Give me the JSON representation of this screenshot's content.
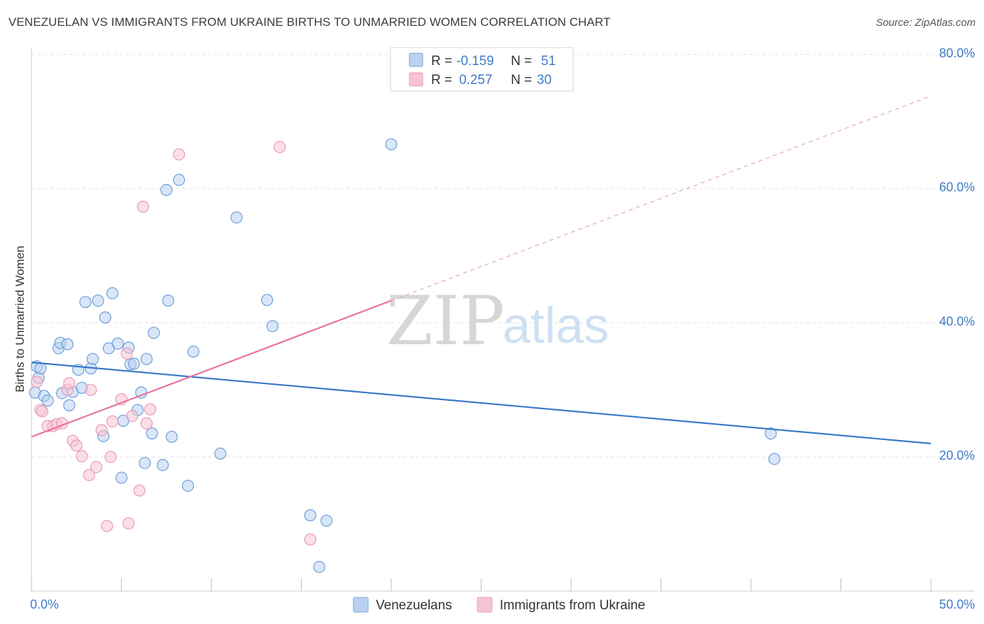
{
  "header": {
    "title": "VENEZUELAN VS IMMIGRANTS FROM UKRAINE BIRTHS TO UNMARRIED WOMEN CORRELATION CHART",
    "source": "Source: ZipAtlas.com"
  },
  "watermark": {
    "zip": "ZIP",
    "atlas": "atlas"
  },
  "legend": {
    "rows": [
      {
        "r_label": "R =",
        "r_value": "-0.159",
        "n_label": "N =",
        "n_value": "51"
      },
      {
        "r_label": "R =",
        "r_value": "0.257",
        "n_label": "N =",
        "n_value": "30"
      }
    ]
  },
  "chart_data": {
    "type": "scatter",
    "title": "VENEZUELAN VS IMMIGRANTS FROM UKRAINE BIRTHS TO UNMARRIED WOMEN CORRELATION CHART",
    "xlabel": "",
    "ylabel": "Births to Unmarried Women",
    "xlim": [
      0,
      50
    ],
    "ylim": [
      0,
      80
    ],
    "x_tick_labels": [
      "0.0%",
      "50.0%"
    ],
    "y_ticks": [
      20,
      40,
      60,
      80
    ],
    "y_tick_labels": [
      "20.0%",
      "40.0%",
      "60.0%",
      "80.0%"
    ],
    "grid": true,
    "legend_position": "top-center",
    "colors": {
      "venezuelans": "#3b78c9",
      "ukraine": "#e8739c",
      "venezuelans_fill": "#b8d2f0",
      "ukraine_fill": "#f6c4d4"
    },
    "series": [
      {
        "name": "Venezuelans",
        "trend": {
          "x": [
            0,
            50
          ],
          "y": [
            34.1,
            22.0
          ],
          "dashed_extension": false
        },
        "points": [
          [
            0.3,
            33.5
          ],
          [
            0.4,
            31.8
          ],
          [
            0.2,
            29.6
          ],
          [
            0.5,
            33.2
          ],
          [
            0.7,
            29.1
          ],
          [
            0.9,
            28.4
          ],
          [
            1.5,
            36.2
          ],
          [
            1.6,
            37.0
          ],
          [
            1.7,
            29.5
          ],
          [
            2.0,
            36.8
          ],
          [
            2.1,
            27.7
          ],
          [
            2.3,
            29.7
          ],
          [
            2.6,
            33.0
          ],
          [
            2.8,
            30.3
          ],
          [
            3.0,
            43.1
          ],
          [
            3.3,
            33.2
          ],
          [
            3.4,
            34.6
          ],
          [
            3.7,
            43.3
          ],
          [
            4.0,
            23.1
          ],
          [
            4.1,
            40.8
          ],
          [
            4.3,
            36.2
          ],
          [
            4.5,
            44.4
          ],
          [
            4.8,
            36.9
          ],
          [
            5.0,
            16.9
          ],
          [
            5.1,
            25.4
          ],
          [
            5.4,
            36.3
          ],
          [
            5.5,
            33.8
          ],
          [
            5.7,
            33.9
          ],
          [
            5.9,
            27.0
          ],
          [
            6.1,
            29.6
          ],
          [
            6.4,
            34.6
          ],
          [
            6.3,
            19.1
          ],
          [
            6.7,
            23.5
          ],
          [
            6.8,
            38.5
          ],
          [
            7.3,
            18.8
          ],
          [
            7.6,
            43.3
          ],
          [
            7.8,
            23.0
          ],
          [
            7.5,
            59.8
          ],
          [
            8.2,
            61.3
          ],
          [
            8.7,
            15.7
          ],
          [
            9.0,
            35.7
          ],
          [
            10.5,
            20.5
          ],
          [
            11.4,
            55.7
          ],
          [
            13.1,
            43.4
          ],
          [
            13.4,
            39.5
          ],
          [
            15.5,
            11.3
          ],
          [
            16.0,
            3.6
          ],
          [
            16.4,
            10.5
          ],
          [
            20.0,
            66.6
          ],
          [
            41.1,
            23.5
          ],
          [
            41.3,
            19.7
          ]
        ]
      },
      {
        "name": "Immigrants from Ukraine",
        "trend": {
          "x": [
            0,
            20
          ],
          "y": [
            23.0,
            43.3
          ],
          "dashed_extension": true,
          "extension_to": [
            50,
            73.8
          ]
        },
        "points": [
          [
            0.3,
            31.2
          ],
          [
            0.5,
            27.0
          ],
          [
            0.6,
            26.8
          ],
          [
            0.9,
            24.6
          ],
          [
            1.2,
            24.6
          ],
          [
            1.4,
            24.9
          ],
          [
            1.7,
            25.0
          ],
          [
            2.0,
            30.0
          ],
          [
            2.1,
            31.0
          ],
          [
            2.3,
            22.4
          ],
          [
            2.5,
            21.7
          ],
          [
            2.8,
            20.1
          ],
          [
            3.2,
            17.3
          ],
          [
            3.3,
            30.0
          ],
          [
            3.6,
            18.5
          ],
          [
            3.9,
            24.0
          ],
          [
            4.2,
            9.7
          ],
          [
            4.4,
            20.0
          ],
          [
            4.5,
            25.3
          ],
          [
            5.0,
            28.6
          ],
          [
            5.3,
            35.4
          ],
          [
            5.4,
            10.1
          ],
          [
            5.6,
            26.1
          ],
          [
            6.0,
            15.0
          ],
          [
            6.2,
            57.3
          ],
          [
            6.4,
            25.0
          ],
          [
            6.6,
            27.1
          ],
          [
            8.2,
            65.1
          ],
          [
            13.8,
            66.2
          ],
          [
            15.5,
            7.7
          ]
        ]
      }
    ]
  },
  "bottom_legend": [
    {
      "label": "Venezuelans"
    },
    {
      "label": "Immigrants from Ukraine"
    }
  ]
}
